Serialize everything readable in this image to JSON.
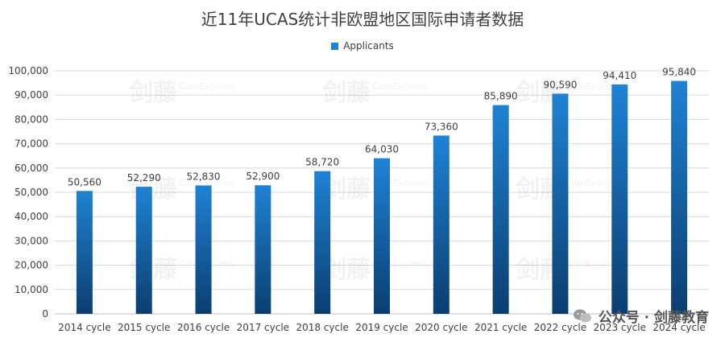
{
  "chart_data": {
    "type": "bar",
    "title": "近11年UCAS统计非欧盟地区国际申请者数据",
    "categories": [
      "2014 cycle",
      "2015 cycle",
      "2016 cycle",
      "2017 cycle",
      "2018 cycle",
      "2019 cycle",
      "2020 cycle",
      "2021 cycle",
      "2022 cycle",
      "2023 cycle",
      "2024 cycle"
    ],
    "series": [
      {
        "name": "Applicants",
        "values": [
          50560,
          52290,
          52830,
          52900,
          58720,
          64030,
          73360,
          85890,
          90590,
          94410,
          95840
        ],
        "value_labels": [
          "50,560",
          "52,290",
          "52,830",
          "52,900",
          "58,720",
          "64,030",
          "73,360",
          "85,890",
          "90,590",
          "94,410",
          "95,840"
        ]
      }
    ],
    "ylim": [
      0,
      100000
    ],
    "yticks": [
      0,
      10000,
      20000,
      30000,
      40000,
      50000,
      60000,
      70000,
      80000,
      90000,
      100000
    ],
    "ytick_labels": [
      "0",
      "10,000",
      "20,000",
      "30,000",
      "40,000",
      "50,000",
      "60,000",
      "70,000",
      "80,000",
      "90,000",
      "100,000"
    ],
    "grid": true,
    "legend_position": "top",
    "colors": {
      "bar_top": "#1f82d4",
      "bar_bottom": "#0b3e70",
      "grid": "#d9d9d9",
      "text": "#404040"
    }
  },
  "watermark": {
    "footer": "公众号 · 剑藤教育",
    "brand_cn": "剑藤",
    "brand_en": "CamExpress"
  }
}
